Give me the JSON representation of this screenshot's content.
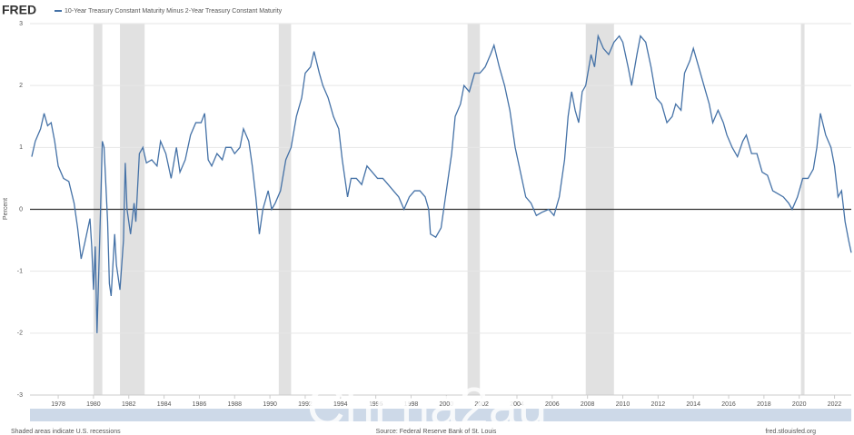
{
  "chart_data": {
    "type": "line",
    "logo": "FRED",
    "title": "10-Year Treasury Constant Maturity Minus 2-Year Treasury Constant Maturity",
    "ylabel": "Percent",
    "note": "Shaded areas indicate U.S. recessions",
    "source": "Source: Federal Reserve Bank of St. Louis",
    "site": "fred.stlouisfed.org",
    "watermark": "Chi na2au",
    "xlim": [
      1976.4,
      2022.95
    ],
    "xticks": [
      1978,
      1980,
      1982,
      1984,
      1986,
      1988,
      1990,
      1992,
      1994,
      1996,
      1998,
      2000,
      2002,
      2004,
      2006,
      2008,
      2010,
      2012,
      2014,
      2016,
      2018,
      2020,
      2022
    ],
    "ylim": [
      -3,
      3
    ],
    "yticks": [
      -3,
      -2,
      -1,
      0,
      1,
      2,
      3
    ],
    "grid": true,
    "recession_color": "#e1e1e1",
    "recessions": [
      [
        1980.0,
        1980.5
      ],
      [
        1981.5,
        1982.9
      ],
      [
        1990.5,
        1991.2
      ],
      [
        2001.2,
        2001.9
      ],
      [
        2007.9,
        2009.5
      ],
      [
        2020.1,
        2020.3
      ]
    ],
    "x": [
      1976.5,
      1976.7,
      1977.0,
      1977.2,
      1977.4,
      1977.6,
      1977.8,
      1978.0,
      1978.3,
      1978.6,
      1978.9,
      1979.1,
      1979.3,
      1979.5,
      1979.8,
      1979.9,
      1980.0,
      1980.1,
      1980.2,
      1980.3,
      1980.4,
      1980.5,
      1980.6,
      1980.8,
      1980.9,
      1981.0,
      1981.2,
      1981.3,
      1981.5,
      1981.7,
      1981.8,
      1981.9,
      1982.1,
      1982.3,
      1982.4,
      1982.6,
      1982.8,
      1983.0,
      1983.3,
      1983.6,
      1983.8,
      1984.1,
      1984.4,
      1984.7,
      1984.9,
      1985.2,
      1985.5,
      1985.8,
      1986.1,
      1986.3,
      1986.5,
      1986.7,
      1987.0,
      1987.3,
      1987.5,
      1987.8,
      1988.0,
      1988.3,
      1988.5,
      1988.8,
      1989.0,
      1989.2,
      1989.4,
      1989.6,
      1989.9,
      1990.1,
      1990.3,
      1990.6,
      1990.9,
      1991.2,
      1991.5,
      1991.8,
      1992.0,
      1992.3,
      1992.5,
      1992.8,
      1993.0,
      1993.3,
      1993.6,
      1993.9,
      1994.1,
      1994.4,
      1994.6,
      1994.9,
      1995.2,
      1995.5,
      1995.8,
      1996.1,
      1996.4,
      1996.7,
      1997.0,
      1997.3,
      1997.6,
      1997.9,
      1998.2,
      1998.5,
      1998.8,
      1999.0,
      1999.1,
      1999.4,
      1999.7,
      2000.0,
      2000.3,
      2000.5,
      2000.8,
      2001.0,
      2001.3,
      2001.6,
      2001.9,
      2002.2,
      2002.5,
      2002.7,
      2003.0,
      2003.3,
      2003.6,
      2003.9,
      2004.2,
      2004.5,
      2004.8,
      2005.1,
      2005.4,
      2005.8,
      2006.1,
      2006.4,
      2006.7,
      2006.9,
      2007.1,
      2007.3,
      2007.5,
      2007.7,
      2007.9,
      2008.2,
      2008.4,
      2008.6,
      2008.9,
      2009.2,
      2009.5,
      2009.8,
      2010.0,
      2010.3,
      2010.5,
      2010.8,
      2011.0,
      2011.3,
      2011.6,
      2011.9,
      2012.2,
      2012.5,
      2012.8,
      2013.0,
      2013.3,
      2013.5,
      2013.8,
      2014.0,
      2014.3,
      2014.6,
      2014.9,
      2015.1,
      2015.4,
      2015.7,
      2015.9,
      2016.2,
      2016.5,
      2016.8,
      2017.0,
      2017.3,
      2017.6,
      2017.9,
      2018.2,
      2018.5,
      2018.8,
      2019.1,
      2019.4,
      2019.6,
      2019.9,
      2020.2,
      2020.5,
      2020.8,
      2021.0,
      2021.2,
      2021.5,
      2021.8,
      2022.0,
      2022.2,
      2022.4,
      2022.6,
      2022.8,
      2022.95
    ],
    "series": [
      {
        "name": "10-Year Treasury Constant Maturity Minus 2-Year Treasury Constant Maturity",
        "color": "#4572a7",
        "values": [
          0.85,
          1.1,
          1.3,
          1.55,
          1.35,
          1.4,
          1.1,
          0.7,
          0.5,
          0.45,
          0.1,
          -0.3,
          -0.8,
          -0.55,
          -0.15,
          -0.6,
          -1.3,
          -0.6,
          -2.0,
          -1.0,
          0.0,
          1.1,
          1.0,
          -0.2,
          -1.2,
          -1.4,
          -0.4,
          -0.9,
          -1.3,
          -0.5,
          0.75,
          0.0,
          -0.4,
          0.1,
          -0.2,
          0.9,
          1.0,
          0.75,
          0.8,
          0.7,
          1.1,
          0.9,
          0.5,
          1.0,
          0.6,
          0.8,
          1.2,
          1.4,
          1.4,
          1.55,
          0.8,
          0.7,
          0.9,
          0.8,
          1.0,
          1.0,
          0.9,
          1.0,
          1.3,
          1.1,
          0.7,
          0.2,
          -0.4,
          0.0,
          0.3,
          0.0,
          0.1,
          0.3,
          0.8,
          1.0,
          1.5,
          1.8,
          2.2,
          2.3,
          2.55,
          2.2,
          2.0,
          1.8,
          1.5,
          1.3,
          0.8,
          0.2,
          0.5,
          0.5,
          0.4,
          0.7,
          0.6,
          0.5,
          0.5,
          0.4,
          0.3,
          0.2,
          0.0,
          0.2,
          0.3,
          0.3,
          0.2,
          0.0,
          -0.4,
          -0.45,
          -0.3,
          0.3,
          0.9,
          1.5,
          1.7,
          2.0,
          1.9,
          2.2,
          2.2,
          2.3,
          2.5,
          2.65,
          2.3,
          2.0,
          1.6,
          1.0,
          0.6,
          0.2,
          0.1,
          -0.1,
          -0.05,
          0.0,
          -0.1,
          0.2,
          0.8,
          1.5,
          1.9,
          1.6,
          1.4,
          1.9,
          2.0,
          2.5,
          2.3,
          2.8,
          2.6,
          2.5,
          2.7,
          2.8,
          2.7,
          2.3,
          2.0,
          2.5,
          2.8,
          2.7,
          2.3,
          1.8,
          1.7,
          1.4,
          1.5,
          1.7,
          1.6,
          2.2,
          2.4,
          2.6,
          2.3,
          2.0,
          1.7,
          1.4,
          1.6,
          1.4,
          1.2,
          1.0,
          0.85,
          1.1,
          1.2,
          0.9,
          0.9,
          0.6,
          0.55,
          0.3,
          0.25,
          0.2,
          0.1,
          0.0,
          0.2,
          0.5,
          0.5,
          0.65,
          1.0,
          1.55,
          1.2,
          1.0,
          0.7,
          0.2,
          0.3,
          -0.2,
          -0.5,
          -0.7
        ]
      }
    ]
  }
}
